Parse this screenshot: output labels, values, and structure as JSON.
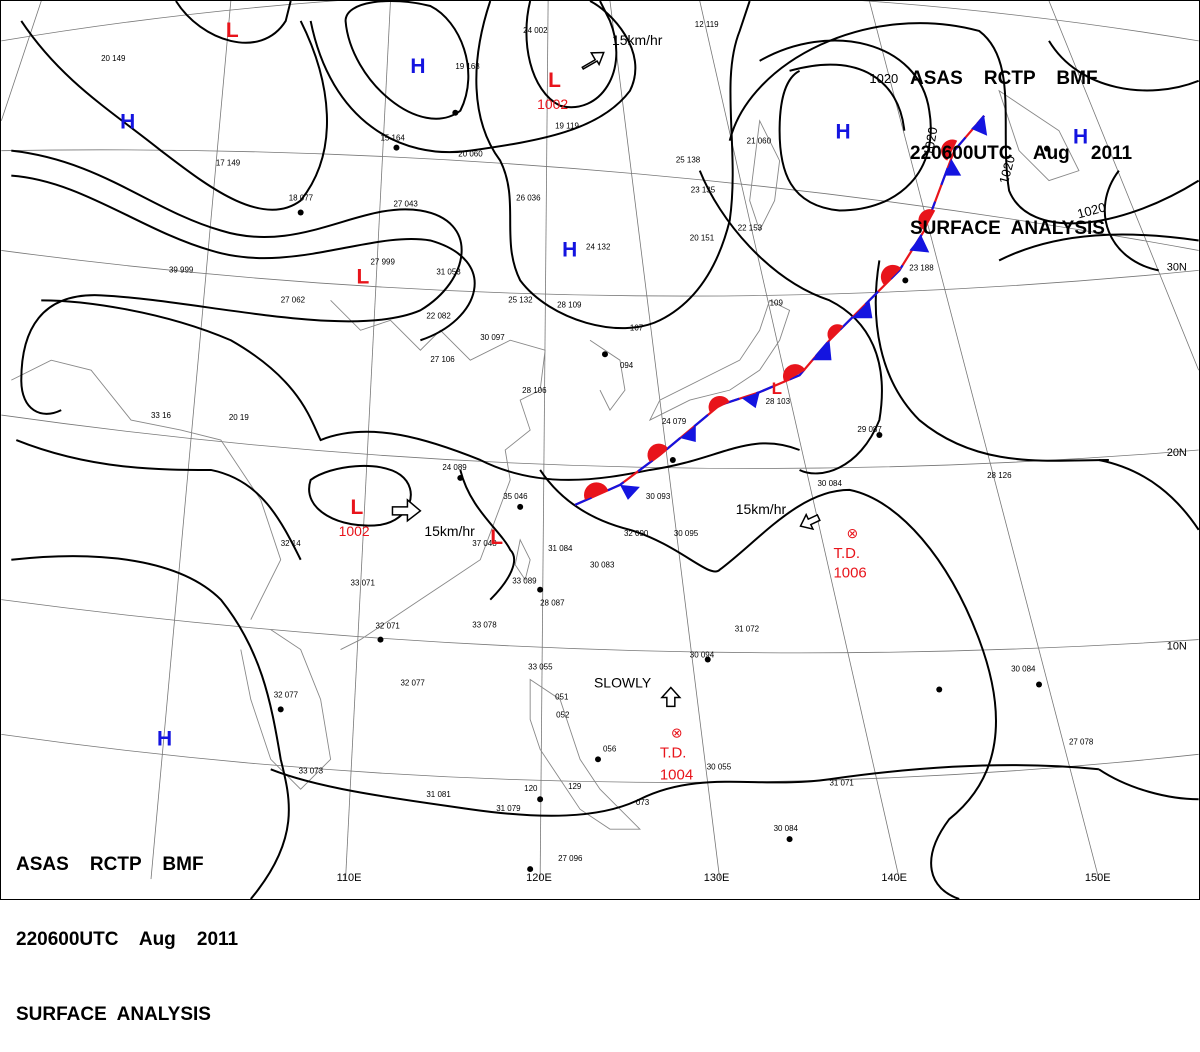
{
  "header_top": {
    "line1": "ASAS    RCTP    BMF",
    "line2": "220600UTC    Aug    2011",
    "line3": "SURFACE  ANALYSIS"
  },
  "header_bottom": {
    "line1": "ASAS    RCTP    BMF",
    "line2": "220600UTC    Aug    2011",
    "line3": "SURFACE  ANALYSIS"
  },
  "longitude_labels": [
    "110E",
    "120E",
    "130E",
    "140E",
    "150E"
  ],
  "latitude_labels": [
    "30N",
    "20N",
    "10N"
  ],
  "isobar_labels": [
    "1020",
    "1020",
    "1020",
    "1020"
  ],
  "pressure_centers": [
    {
      "symbol": "L",
      "value": ""
    },
    {
      "symbol": "H",
      "value": ""
    },
    {
      "symbol": "H",
      "value": ""
    },
    {
      "symbol": "L",
      "value": "1002"
    },
    {
      "symbol": "H",
      "value": ""
    },
    {
      "symbol": "H",
      "value": ""
    },
    {
      "symbol": "H",
      "value": ""
    },
    {
      "symbol": "L",
      "value": ""
    },
    {
      "symbol": "L",
      "value": "1002"
    },
    {
      "symbol": "L",
      "value": ""
    },
    {
      "symbol": "H",
      "value": ""
    },
    {
      "symbol": "L",
      "value": ""
    }
  ],
  "depressions": [
    {
      "label": "T.D.",
      "pressure": "1006"
    },
    {
      "label": "T.D.",
      "pressure": "1004"
    }
  ],
  "motions": [
    {
      "text": "15km/hr"
    },
    {
      "text": "15km/hr"
    },
    {
      "text": "15km/hr"
    },
    {
      "text": "SLOWLY"
    }
  ],
  "station_samples": [
    "20 149",
    "19 168",
    "15 164",
    "17 149",
    "18 077",
    "27 043",
    "27 999",
    "31 053",
    "27 062",
    "22 082",
    "27 106",
    "30 097",
    "28 106",
    "25 132",
    "28 109",
    "24 132",
    "20 060",
    "26 036",
    "19 119",
    "25 138",
    "23 135",
    "20 151",
    "22 153",
    "21 060",
    "12 119",
    "24 002",
    "24 089",
    "35 046",
    "37 048",
    "31 084",
    "33 089",
    "28 087",
    "30 083",
    "32 090",
    "30 093",
    "30 095",
    "24 079",
    "28 103",
    "30 084",
    "29 087",
    "28 126",
    "31 072",
    "30 094",
    "30 084",
    "27 078",
    "31 071",
    "30 084",
    "30 055",
    "33 055",
    "27 096",
    "31 079",
    "31 081",
    "33 073",
    "32 077",
    "32 077",
    "33 071",
    "33 078",
    "32 071",
    "32 14",
    "39 999",
    "33 16",
    "20 19",
    "23 188",
    "109",
    "107",
    "094",
    "051",
    "052",
    "056",
    "073",
    "120",
    "129"
  ],
  "colors": {
    "warm_front": "#e8141b",
    "cold_front": "#1414e0",
    "low_symbol": "#e8141b",
    "high_symbol": "#1414e0"
  }
}
